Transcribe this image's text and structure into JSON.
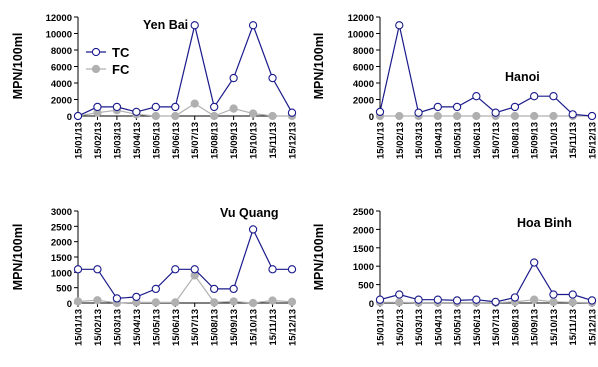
{
  "colors": {
    "tc": "#1a1a8c",
    "fc": "#b0b0b0",
    "axis": "#000000"
  },
  "chart_data": [
    {
      "type": "line",
      "title": "Yen Bai",
      "ylabel": "MPN/100ml",
      "ylim": [
        0,
        12000
      ],
      "yticks": [
        "0",
        "2000",
        "4000",
        "6000",
        "8000",
        "10000",
        "12000"
      ],
      "categories": [
        "15/01/13",
        "15/02/13",
        "15/03/13",
        "15/04/13",
        "15/05/13",
        "15/06/13",
        "15/07/13",
        "15/08/13",
        "15/09/13",
        "15/10/13",
        "15/11/13",
        "15/12/13"
      ],
      "legend": {
        "position": "top-left",
        "show": true
      },
      "series": [
        {
          "name": "TC",
          "values": [
            0,
            1100,
            1100,
            500,
            1100,
            1100,
            11000,
            1100,
            4600,
            11000,
            4600,
            400
          ]
        },
        {
          "name": "FC",
          "values": [
            0,
            400,
            700,
            200,
            0,
            0,
            1500,
            0,
            900,
            300,
            0,
            0
          ]
        }
      ]
    },
    {
      "type": "line",
      "title": "Hanoi",
      "ylabel": "MPN/100ml",
      "ylim": [
        0,
        12000
      ],
      "yticks": [
        "0",
        "2000",
        "4000",
        "6000",
        "8000",
        "10000",
        "12000"
      ],
      "categories": [
        "15/01/13",
        "15/02/13",
        "15/03/13",
        "15/04/13",
        "15/05/13",
        "15/06/13",
        "15/07/13",
        "15/08/13",
        "15/09/13",
        "15/10/13",
        "15/11/13",
        "15/12/13"
      ],
      "legend": {
        "show": false
      },
      "series": [
        {
          "name": "TC",
          "values": [
            500,
            11000,
            400,
            1100,
            1100,
            2400,
            400,
            1100,
            2400,
            2400,
            200,
            0
          ]
        },
        {
          "name": "FC",
          "values": [
            0,
            0,
            0,
            0,
            0,
            0,
            0,
            0,
            0,
            0,
            0,
            0
          ]
        }
      ]
    },
    {
      "type": "line",
      "title": "Vu Quang",
      "ylabel": "MPN/100ml",
      "ylim": [
        0,
        3000
      ],
      "yticks": [
        "0",
        "500",
        "1000",
        "1500",
        "2000",
        "2500",
        "3000"
      ],
      "categories": [
        "15/01/13",
        "15/02/13",
        "15/03/13",
        "15/04/13",
        "15/05/13",
        "15/06/13",
        "15/07/13",
        "15/08/13",
        "15/09/13",
        "15/10/13",
        "15/11/13",
        "15/12/13"
      ],
      "legend": {
        "show": false
      },
      "series": [
        {
          "name": "TC",
          "values": [
            1100,
            1100,
            150,
            200,
            460,
            1100,
            1100,
            460,
            460,
            2400,
            1100,
            1100
          ]
        },
        {
          "name": "FC",
          "values": [
            50,
            90,
            0,
            20,
            20,
            20,
            900,
            20,
            50,
            0,
            80,
            40
          ]
        }
      ]
    },
    {
      "type": "line",
      "title": "Hoa Binh",
      "ylabel": "MPN/100ml",
      "ylim": [
        0,
        2500
      ],
      "yticks": [
        "0",
        "500",
        "1000",
        "1500",
        "2000",
        "2500"
      ],
      "categories": [
        "15/01/13",
        "15/02/13",
        "15/03/13",
        "15/04/13",
        "15/05/13",
        "15/06/13",
        "15/07/13",
        "15/08/13",
        "15/09/13",
        "15/10/13",
        "15/11/13",
        "15/12/13"
      ],
      "legend": {
        "show": false
      },
      "series": [
        {
          "name": "TC",
          "values": [
            90,
            230,
            90,
            90,
            70,
            90,
            30,
            150,
            1100,
            230,
            230,
            70
          ]
        },
        {
          "name": "FC",
          "values": [
            20,
            20,
            10,
            10,
            10,
            10,
            10,
            30,
            90,
            30,
            20,
            10
          ]
        }
      ]
    }
  ]
}
